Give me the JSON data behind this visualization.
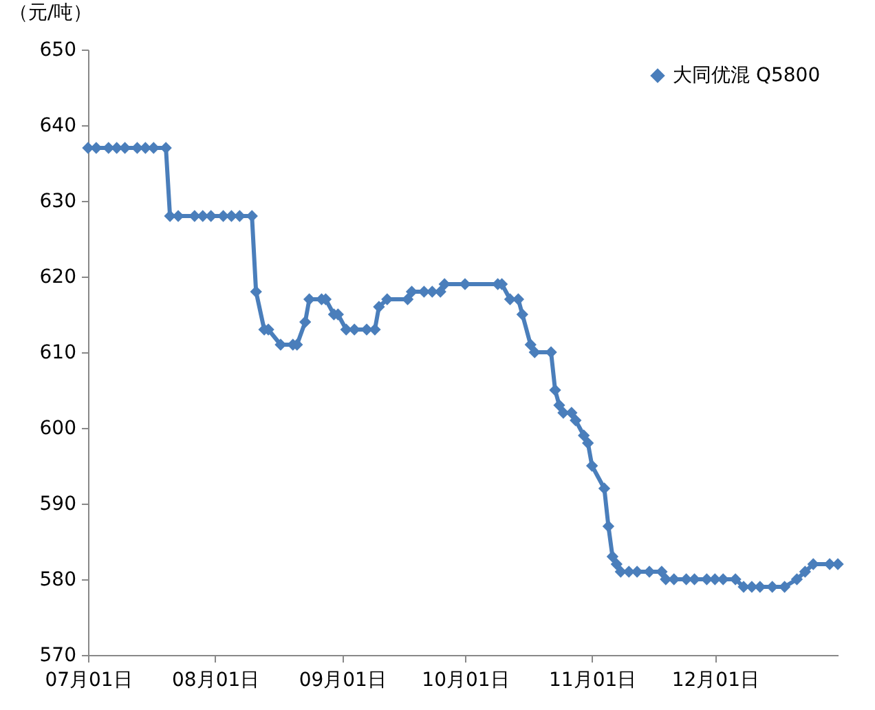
{
  "chart_data": {
    "type": "line",
    "ylabel": "（元/吨）",
    "x": [
      "--07-01",
      "--07-03",
      "--07-06",
      "--07-08",
      "--07-10",
      "--07-13",
      "--07-15",
      "--07-17",
      "--07-20",
      "--07-21",
      "--07-23",
      "--07-27",
      "--07-29",
      "--07-31",
      "--08-03",
      "--08-05",
      "--08-07",
      "--08-10",
      "--08-11",
      "--08-13",
      "--08-14",
      "--08-17",
      "--08-20",
      "--08-21",
      "--08-23",
      "--08-24",
      "--08-27",
      "--08-28",
      "--08-30",
      "--08-31",
      "--09-02",
      "--09-04",
      "--09-07",
      "--09-09",
      "--09-10",
      "--09-12",
      "--09-17",
      "--09-18",
      "--09-21",
      "--09-23",
      "--09-25",
      "--09-26",
      "--10-01",
      "--10-09",
      "--10-10",
      "--10-12",
      "--10-14",
      "--10-15",
      "--10-17",
      "--10-18",
      "--10-22",
      "--10-23",
      "--10-24",
      "--10-25",
      "--10-27",
      "--10-28",
      "--10-30",
      "--10-31",
      "--11-01",
      "--11-04",
      "--11-05",
      "--11-06",
      "--11-07",
      "--11-08",
      "--11-10",
      "--11-12",
      "--11-15",
      "--11-18",
      "--11-19",
      "--11-21",
      "--11-24",
      "--11-26",
      "--11-29",
      "--12-01",
      "--12-03",
      "--12-06",
      "--12-08",
      "--12-10",
      "--12-12",
      "--12-15",
      "--12-18",
      "--12-21",
      "--12-23",
      "--12-25",
      "--12-29",
      "--12-31"
    ],
    "series": [
      {
        "name": "大同优混 Q5800",
        "color": "#4a7ebb",
        "values": [
          637,
          637,
          637,
          637,
          637,
          637,
          637,
          637,
          637,
          628,
          628,
          628,
          628,
          628,
          628,
          628,
          628,
          628,
          618,
          613,
          613,
          611,
          611,
          611,
          614,
          617,
          617,
          617,
          615,
          615,
          613,
          613,
          613,
          613,
          616,
          617,
          617,
          618,
          618,
          618,
          618,
          619,
          619,
          619,
          619,
          617,
          617,
          615,
          611,
          610,
          610,
          605,
          603,
          602,
          602,
          601,
          599,
          598,
          595,
          592,
          587,
          583,
          582,
          581,
          581,
          581,
          581,
          581,
          580,
          580,
          580,
          580,
          580,
          580,
          580,
          580,
          579,
          579,
          579,
          579,
          579,
          580,
          581,
          582,
          582,
          582
        ]
      }
    ],
    "xlim": [
      "--07-01",
      "--12-31"
    ],
    "xticks": [
      {
        "value": "--07-01",
        "label": "07月01日"
      },
      {
        "value": "--08-01",
        "label": "08月01日"
      },
      {
        "value": "--09-01",
        "label": "09月01日"
      },
      {
        "value": "--10-01",
        "label": "10月01日"
      },
      {
        "value": "--11-01",
        "label": "11月01日"
      },
      {
        "value": "--12-01",
        "label": "12月01日"
      }
    ],
    "ylim": [
      570,
      650
    ],
    "yticks": [
      570,
      580,
      590,
      600,
      610,
      620,
      630,
      640,
      650
    ],
    "grid": false,
    "legend": "top right",
    "marker": "diamond",
    "line_style": "solid"
  }
}
